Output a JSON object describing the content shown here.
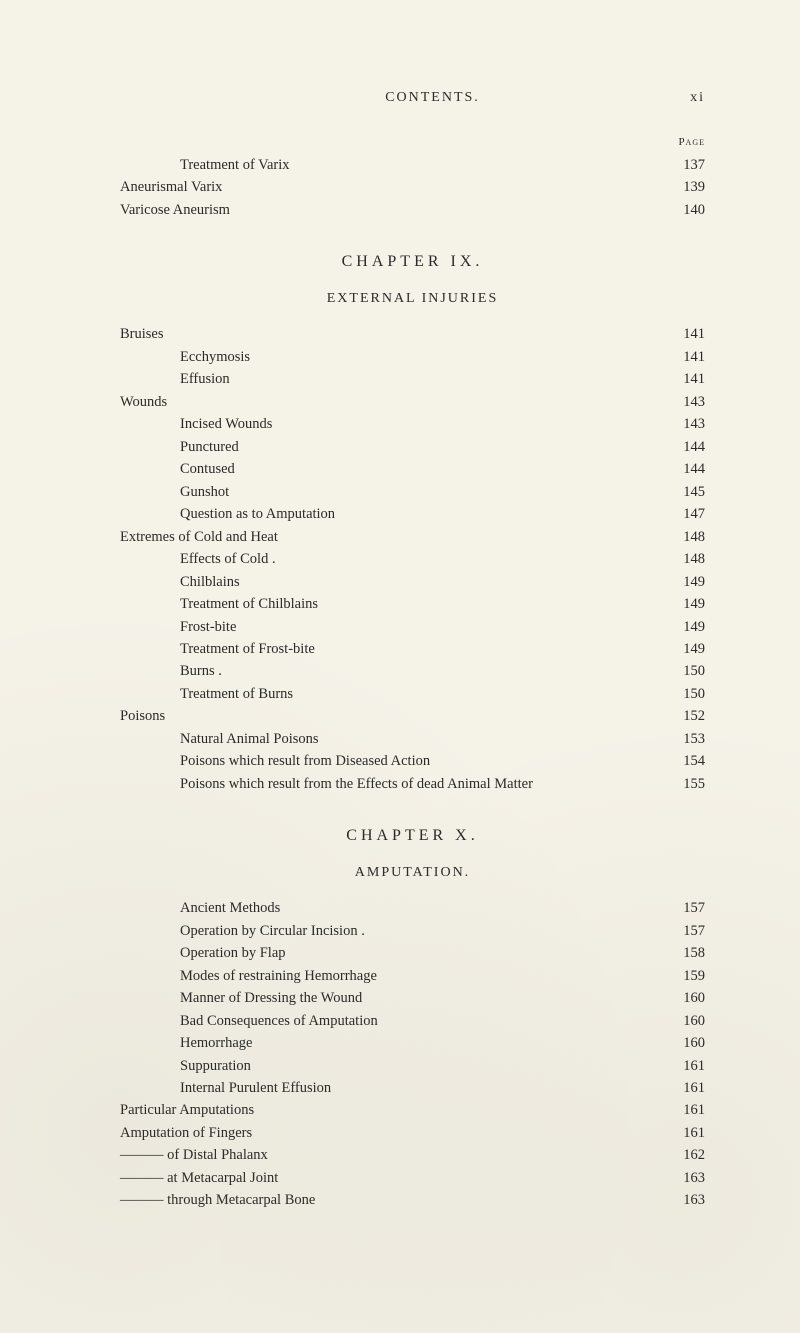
{
  "header": {
    "center": "CONTENTS.",
    "right": "xi"
  },
  "page_label": "Page",
  "top_block": [
    {
      "label": "Treatment of Varix",
      "page": "137",
      "indent": 1
    },
    {
      "label": "Aneurismal Varix",
      "page": "139",
      "indent": 0
    },
    {
      "label": "Varicose Aneurism",
      "page": "140",
      "indent": 0
    }
  ],
  "chapter_ix": {
    "title": "CHAPTER  IX.",
    "subtitle": "EXTERNAL INJURIES",
    "entries": [
      {
        "label": "Bruises",
        "page": "141",
        "indent": 0
      },
      {
        "label": "Ecchymosis",
        "page": "141",
        "indent": 1
      },
      {
        "label": "Effusion",
        "page": "141",
        "indent": 1
      },
      {
        "label": "Wounds",
        "page": "143",
        "indent": 0
      },
      {
        "label": "Incised Wounds",
        "page": "143",
        "indent": 1
      },
      {
        "label": "Punctured",
        "page": "144",
        "indent": 1
      },
      {
        "label": "Contused",
        "page": "144",
        "indent": 1
      },
      {
        "label": "Gunshot",
        "page": "145",
        "indent": 1
      },
      {
        "label": "Question as to Amputation",
        "page": "147",
        "indent": 1
      },
      {
        "label": "Extremes of Cold and Heat",
        "page": "148",
        "indent": 0
      },
      {
        "label": "Effects of Cold .",
        "page": "148",
        "indent": 1
      },
      {
        "label": "Chilblains",
        "page": "149",
        "indent": 1
      },
      {
        "label": "Treatment of Chilblains",
        "page": "149",
        "indent": 1
      },
      {
        "label": "Frost-bite",
        "page": "149",
        "indent": 1
      },
      {
        "label": "Treatment of Frost-bite",
        "page": "149",
        "indent": 1
      },
      {
        "label": "Burns .",
        "page": "150",
        "indent": 1
      },
      {
        "label": "Treatment of Burns",
        "page": "150",
        "indent": 1
      },
      {
        "label": "Poisons",
        "page": "152",
        "indent": 0
      },
      {
        "label": "Natural Animal Poisons",
        "page": "153",
        "indent": 1
      },
      {
        "label": "Poisons which result from Diseased Action",
        "page": "154",
        "indent": 1
      },
      {
        "label": "Poisons which result from the Effects of dead Animal Matter",
        "page": "155",
        "indent": 1
      }
    ]
  },
  "chapter_x": {
    "title": "CHAPTER  X.",
    "subtitle": "AMPUTATION.",
    "entries": [
      {
        "label": "Ancient Methods",
        "page": "157",
        "indent": 1
      },
      {
        "label": "Operation by Circular Incision .",
        "page": "157",
        "indent": 1
      },
      {
        "label": "Operation by Flap",
        "page": "158",
        "indent": 1
      },
      {
        "label": "Modes of restraining Hemorrhage",
        "page": "159",
        "indent": 1
      },
      {
        "label": "Manner of Dressing the Wound",
        "page": "160",
        "indent": 1
      },
      {
        "label": "Bad Consequences of Amputation",
        "page": "160",
        "indent": 1
      },
      {
        "label": "Hemorrhage",
        "page": "160",
        "indent": 1
      },
      {
        "label": "Suppuration",
        "page": "161",
        "indent": 1
      },
      {
        "label": "Internal Purulent Effusion",
        "page": "161",
        "indent": 1
      },
      {
        "label": "Particular Amputations",
        "page": "161",
        "indent": 0
      },
      {
        "label": "Amputation of Fingers",
        "page": "161",
        "indent": 0
      },
      {
        "label": "——— of Distal Phalanx",
        "page": "162",
        "indent": 0
      },
      {
        "label": "——— at Metacarpal Joint",
        "page": "163",
        "indent": 0
      },
      {
        "label": "——— through Metacarpal Bone",
        "page": "163",
        "indent": 0
      }
    ]
  }
}
